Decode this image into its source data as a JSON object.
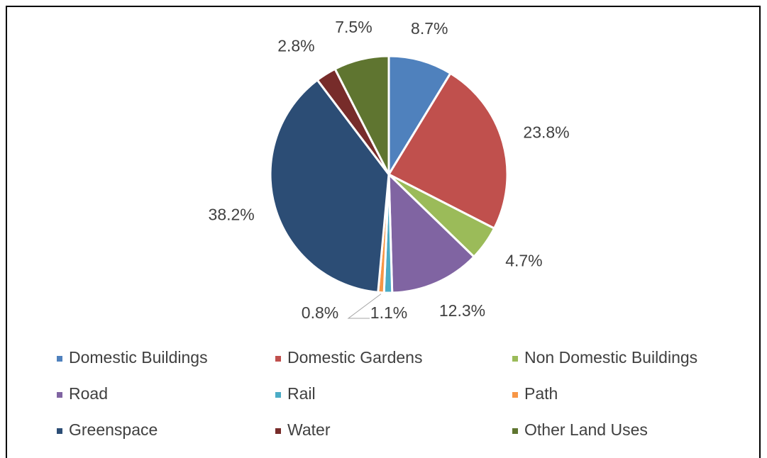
{
  "chart_data": {
    "type": "pie",
    "categories": [
      "Domestic Buildings",
      "Domestic Gardens",
      "Non Domestic Buildings",
      "Road",
      "Rail",
      "Path",
      "Greenspace",
      "Water",
      "Other Land Uses"
    ],
    "values": [
      8.7,
      23.8,
      4.7,
      12.3,
      1.1,
      0.8,
      38.2,
      2.8,
      7.5
    ],
    "value_labels": [
      "8.7%",
      "23.8%",
      "4.7%",
      "12.3%",
      "1.1%",
      "0.8%",
      "38.2%",
      "2.8%",
      "7.5%"
    ],
    "colors": [
      "#4f81bd",
      "#c0504d",
      "#9bbb59",
      "#8064a2",
      "#4bacc6",
      "#f79646",
      "#2c4d75",
      "#772c2a",
      "#5f7530"
    ],
    "legend": "bottom"
  }
}
